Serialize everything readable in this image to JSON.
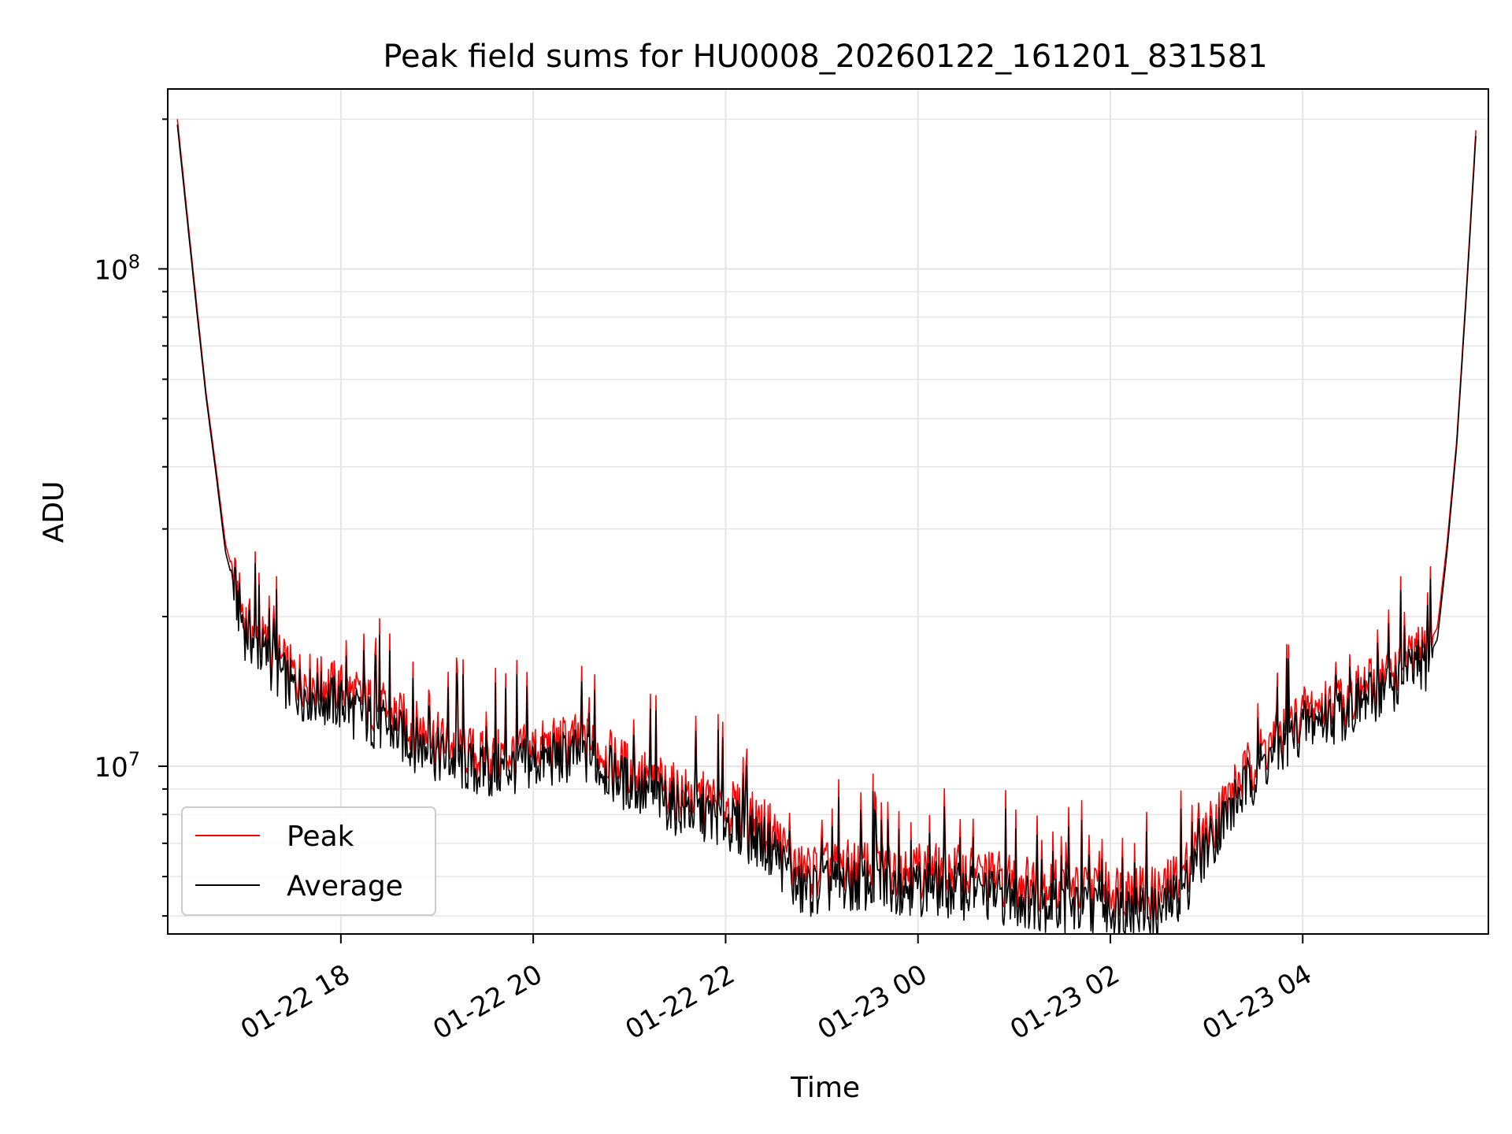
{
  "chart_data": {
    "type": "line",
    "title": "Peak field sums for HU0008_20260122_161201_831581",
    "xlabel": "Time",
    "ylabel": "ADU",
    "yscale": "log",
    "xlim_hours_since_2026_01_22_00": [
      16.2,
      29.93
    ],
    "ylim": [
      4600000,
      230000000
    ],
    "x_ticks": [
      {
        "hour": 18,
        "label": "01-22 18"
      },
      {
        "hour": 20,
        "label": "01-22 20"
      },
      {
        "hour": 22,
        "label": "01-22 22"
      },
      {
        "hour": 24,
        "label": "01-23 00"
      },
      {
        "hour": 26,
        "label": "01-23 02"
      },
      {
        "hour": 28,
        "label": "01-23 04"
      }
    ],
    "y_major_ticks": [
      {
        "value": 10000000,
        "base": "10",
        "exp": "7"
      },
      {
        "value": 100000000,
        "base": "10",
        "exp": "8"
      }
    ],
    "grid": true,
    "legend": {
      "position": "lower-left",
      "entries": [
        {
          "name": "Peak",
          "color": "#ff0000"
        },
        {
          "name": "Average",
          "color": "#000000"
        }
      ]
    },
    "x_hours": [
      16.3,
      16.4,
      16.5,
      16.6,
      16.7,
      16.8,
      17.0,
      17.2,
      17.5,
      18.0,
      18.5,
      19.0,
      19.5,
      20.0,
      20.5,
      21.0,
      21.5,
      22.0,
      22.5,
      22.75,
      23.0,
      23.5,
      24.0,
      24.5,
      25.0,
      25.5,
      25.8,
      26.2,
      26.5,
      26.75,
      27.0,
      27.5,
      28.0,
      28.5,
      29.0,
      29.3,
      29.4,
      29.5,
      29.6,
      29.7,
      29.8
    ],
    "series": [
      {
        "name": "Peak",
        "color": "#ff0000",
        "values": [
          200000000,
          130000000,
          85000000,
          56000000,
          40000000,
          28000000,
          20000000,
          18000000,
          15500000,
          14500000,
          13000000,
          11500000,
          10500000,
          11000000,
          11500000,
          10000000,
          9000000,
          8500000,
          7500000,
          6200000,
          6300000,
          6400000,
          6300000,
          6200000,
          6000000,
          5800000,
          5700000,
          5800000,
          5600000,
          6200000,
          7500000,
          10500000,
          13000000,
          14000000,
          16000000,
          17500000,
          19000000,
          28000000,
          45000000,
          90000000,
          190000000
        ]
      },
      {
        "name": "Average",
        "color": "#000000",
        "values": [
          195000000,
          127000000,
          83000000,
          55000000,
          39000000,
          27000000,
          19000000,
          17000000,
          14500000,
          13500000,
          12000000,
          10700000,
          9800000,
          10300000,
          10700000,
          9300000,
          8400000,
          7900000,
          6900000,
          5700000,
          5800000,
          5900000,
          5800000,
          5700000,
          5500000,
          5300000,
          5200000,
          5300000,
          5100000,
          5700000,
          7000000,
          9800000,
          12200000,
          13200000,
          15000000,
          16500000,
          18000000,
          27000000,
          44000000,
          88000000,
          185000000
        ]
      }
    ]
  }
}
